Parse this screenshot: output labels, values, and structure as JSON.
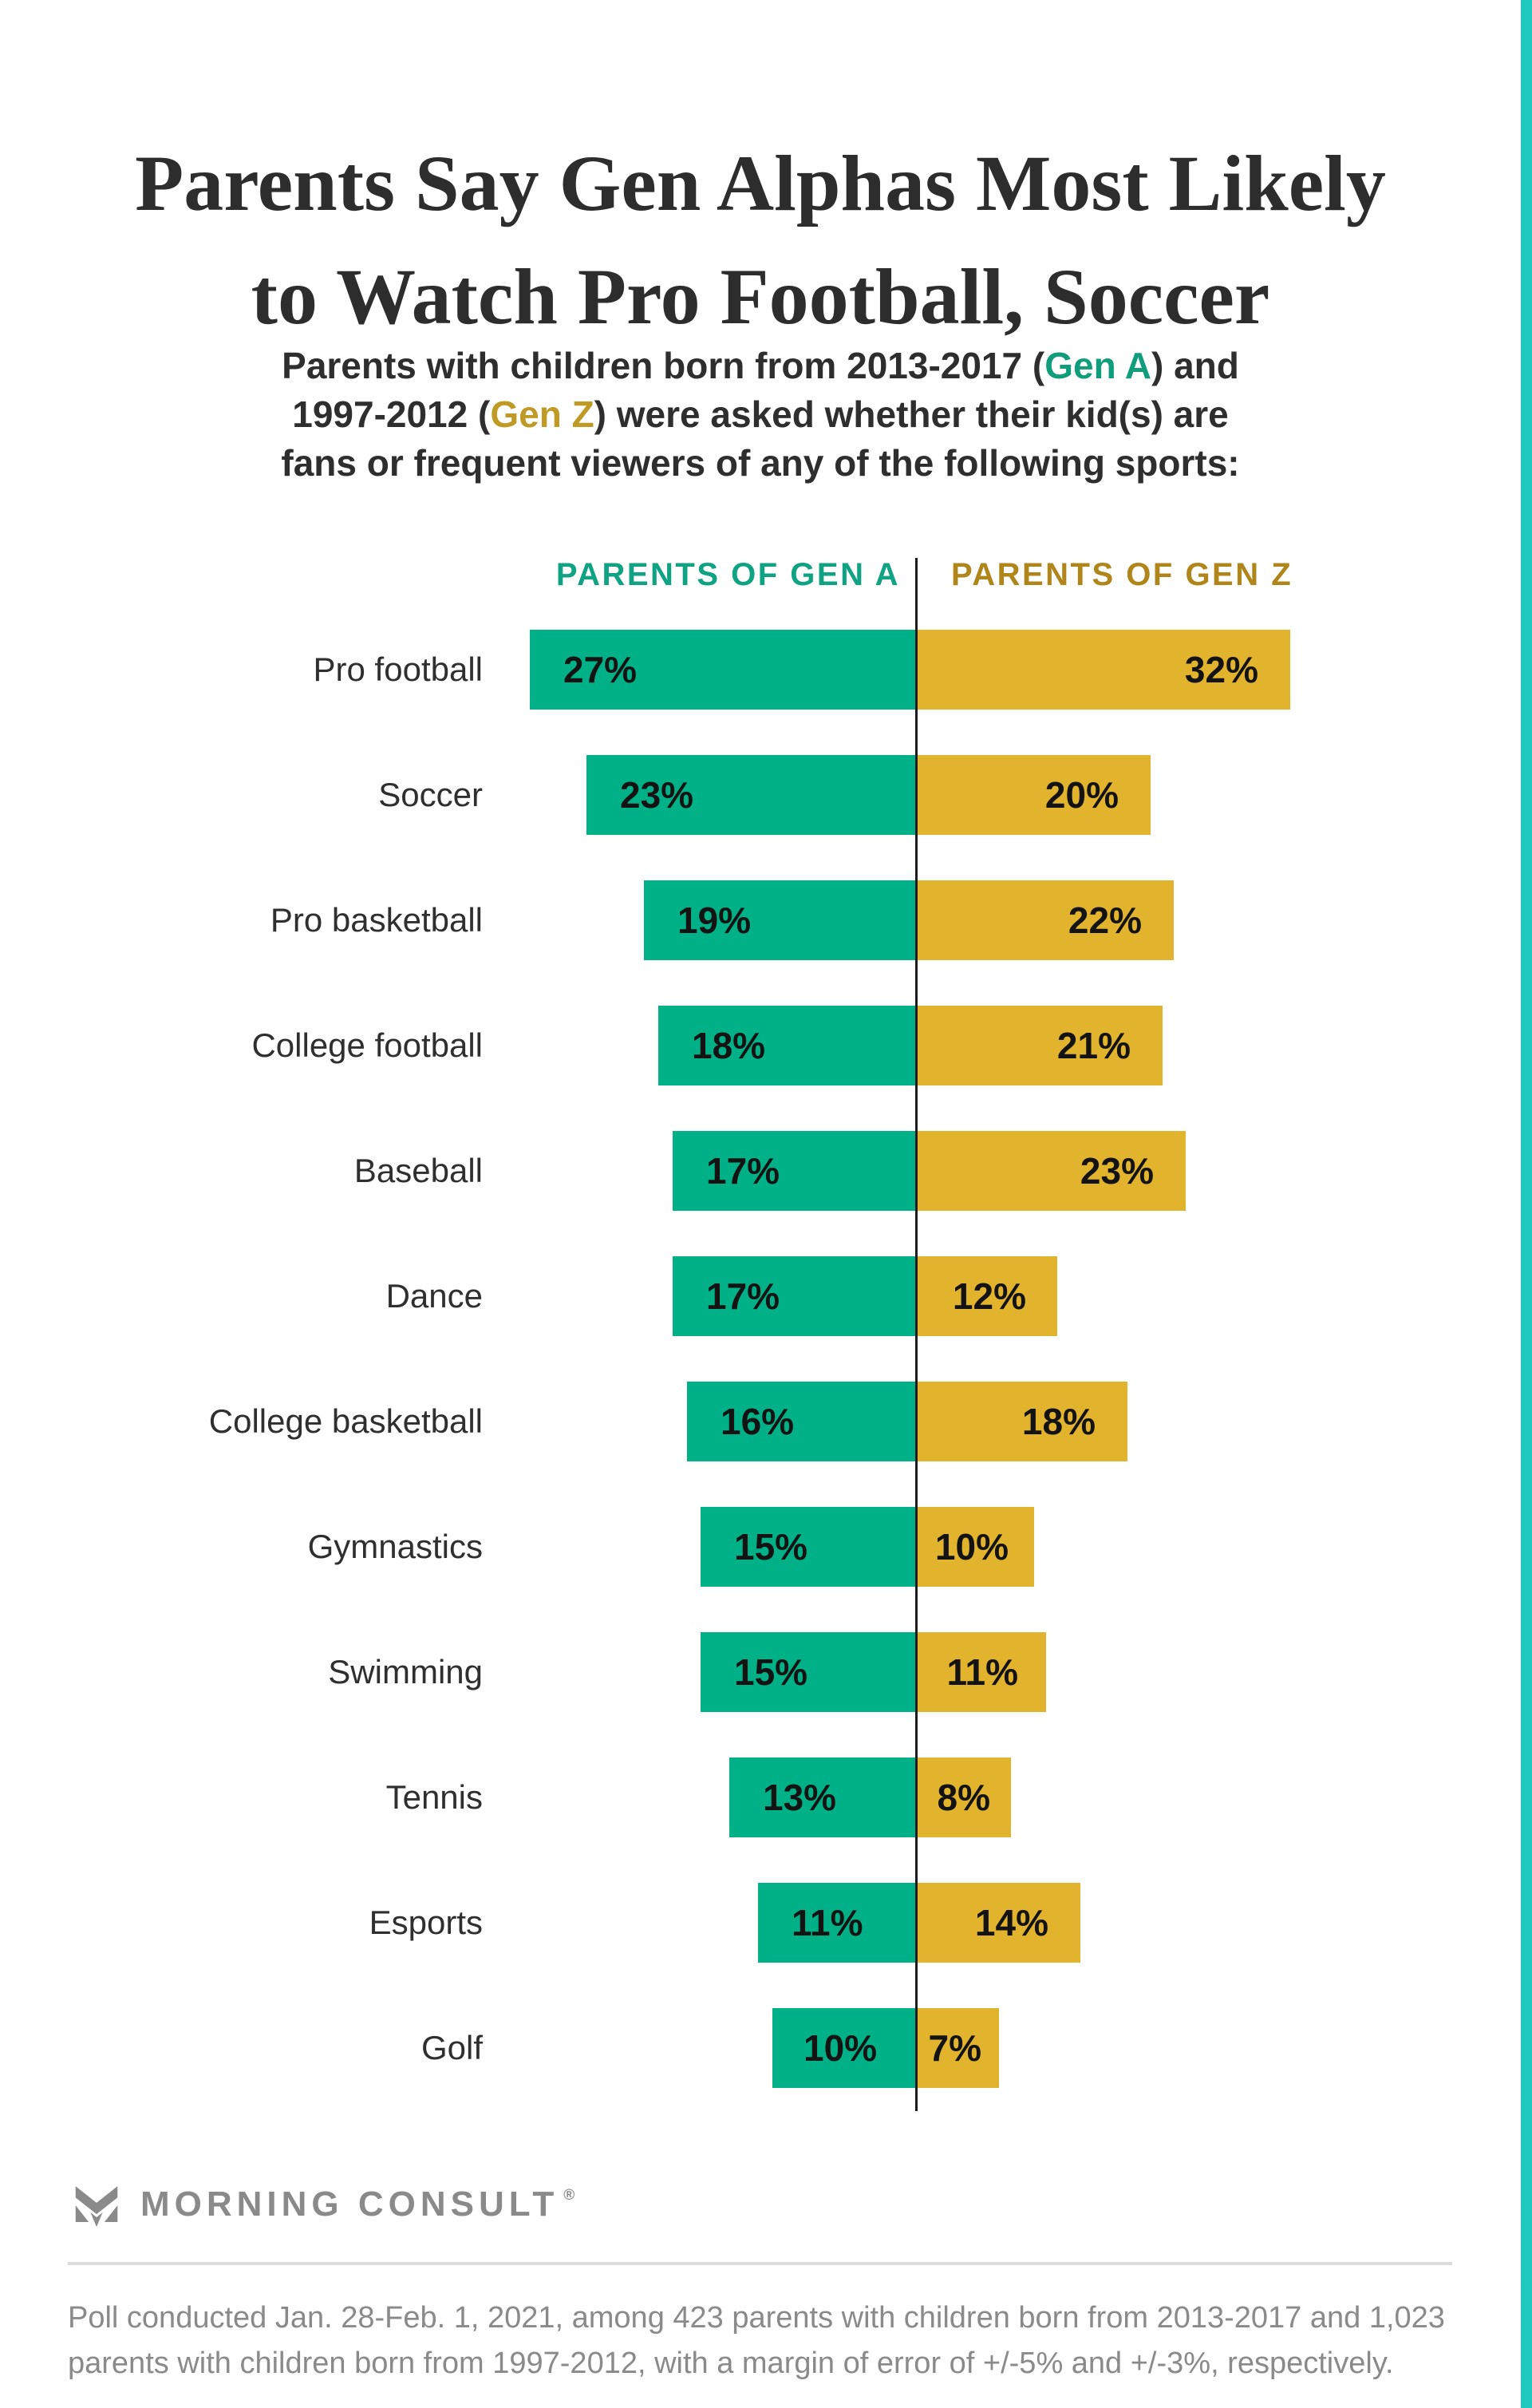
{
  "page": {
    "title_line1": "Parents Say Gen Alphas Most Likely",
    "title_line2": "to Watch Pro Football, Soccer",
    "subtitle": {
      "line1_pre": "Parents with children born from 2013-2017 (",
      "line1_genA": "Gen A",
      "line1_post": ") and",
      "line2_pre": "1997-2012 (",
      "line2_genZ": "Gen Z",
      "line2_post": ") were asked whether their kid(s) are",
      "line3": "fans or frequent viewers of any of the following sports:"
    },
    "footer": {
      "brand": "MORNING CONSULT",
      "registered_mark": "®",
      "footnote_line1": "Poll conducted Jan. 28-Feb. 1, 2021, among 423 parents with children born from 2013-2017 and 1,023",
      "footnote_line2": "parents with children born from 1997-2012, with a margin of error of +/-5% and +/-3%, respectively."
    },
    "colors": {
      "gen_a_bar_teal": "#00B187",
      "gen_z_bar_gold": "#E2B32C",
      "header_teal": "#10A383",
      "header_gold": "#B0861B",
      "subtitle_gen_a": "#0F9D7B",
      "subtitle_gen_z": "#BF9A24",
      "accent_stripe": "#1EC8BE"
    }
  },
  "chart_data": {
    "type": "bar",
    "orientation": "diverging-horizontal",
    "title": "Parents Say Gen Alphas Most Likely to Watch Pro Football, Soccer",
    "left_header": "PARENTS OF GEN A",
    "right_header": "PARENTS OF GEN Z",
    "value_suffix": "%",
    "grid": false,
    "legend_position": "top",
    "categories": [
      "Pro football",
      "Soccer",
      "Pro basketball",
      "College football",
      "Baseball",
      "Dance",
      "College basketball",
      "Gymnastics",
      "Swimming",
      "Tennis",
      "Esports",
      "Golf"
    ],
    "series": [
      {
        "name": "Parents of Gen A",
        "side": "left",
        "color": "#00B187",
        "values": [
          27,
          23,
          19,
          18,
          17,
          17,
          16,
          15,
          15,
          13,
          11,
          10
        ]
      },
      {
        "name": "Parents of Gen Z",
        "side": "right",
        "color": "#E2B32C",
        "values": [
          32,
          20,
          22,
          21,
          23,
          12,
          18,
          10,
          11,
          8,
          14,
          7
        ]
      }
    ]
  }
}
